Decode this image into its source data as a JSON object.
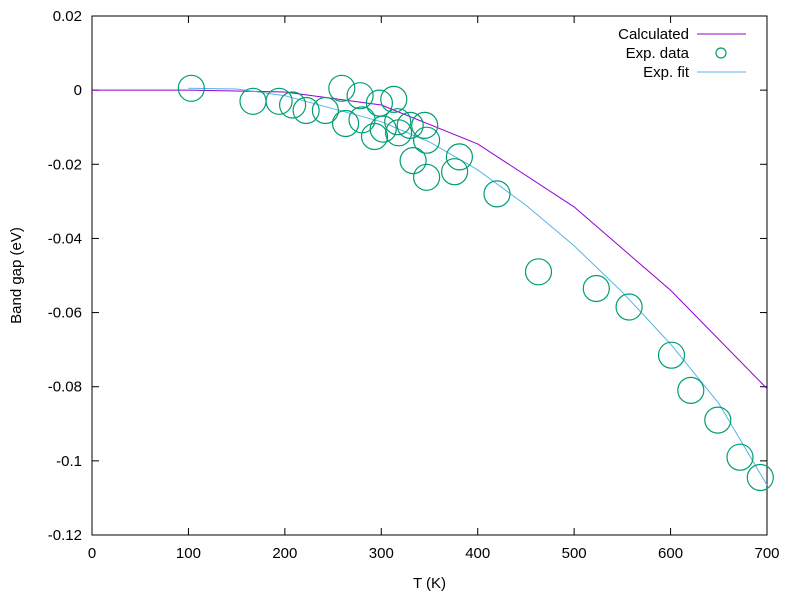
{
  "chart_data": {
    "type": "scatter",
    "xlabel": "T (K)",
    "ylabel": "Band gap (eV)",
    "xlim": [
      0,
      700
    ],
    "ylim": [
      -0.12,
      0.02
    ],
    "x_ticks": [
      0,
      100,
      200,
      300,
      400,
      500,
      600,
      700
    ],
    "x_tick_labels": [
      "0",
      "100",
      "200",
      "300",
      "400",
      "500",
      "600",
      "700"
    ],
    "y_ticks": [
      0.02,
      0,
      -0.02,
      -0.04,
      -0.06,
      -0.08,
      -0.1,
      -0.12
    ],
    "y_tick_labels": [
      "0.02",
      "0",
      "-0.02",
      "-0.04",
      "-0.06",
      "-0.08",
      "-0.1",
      "-0.12"
    ],
    "grid": false,
    "legend_position": "top-right",
    "series": [
      {
        "name": "Calculated",
        "kind": "line",
        "color": "#9400d3",
        "x": [
          0,
          100,
          200,
          300,
          400,
          500,
          600,
          700
        ],
        "y": [
          0,
          0,
          -0.0005,
          -0.004,
          -0.0145,
          -0.0315,
          -0.054,
          -0.0805
        ]
      },
      {
        "name": "Exp. data",
        "kind": "points",
        "marker": "open-circle",
        "color": "#009e73",
        "x": [
          103,
          167,
          194,
          208,
          222,
          242,
          259,
          263,
          278,
          280,
          293,
          298,
          302,
          313,
          317,
          318,
          330,
          333,
          345,
          347,
          347,
          376,
          381,
          420,
          463,
          523,
          557,
          601,
          621,
          649,
          672,
          693
        ],
        "y": [
          0.0005,
          -0.003,
          -0.003,
          -0.004,
          -0.0055,
          -0.0055,
          0.0005,
          -0.009,
          -0.0015,
          -0.008,
          -0.0125,
          -0.0035,
          -0.0105,
          -0.0025,
          -0.0085,
          -0.0115,
          -0.0095,
          -0.019,
          -0.0095,
          -0.0135,
          -0.0235,
          -0.022,
          -0.018,
          -0.028,
          -0.049,
          -0.0535,
          -0.0585,
          -0.0715,
          -0.081,
          -0.089,
          -0.099,
          -0.1045
        ]
      },
      {
        "name": "Exp. fit",
        "kind": "line",
        "color": "#56b4e9",
        "x": [
          100,
          150,
          200,
          250,
          300,
          350,
          400,
          450,
          500,
          550,
          600,
          650,
          700
        ],
        "y": [
          0.0005,
          0.0003,
          -0.0015,
          -0.005,
          -0.0085,
          -0.014,
          -0.0215,
          -0.031,
          -0.042,
          -0.0545,
          -0.0685,
          -0.0845,
          -0.1065
        ]
      }
    ]
  }
}
